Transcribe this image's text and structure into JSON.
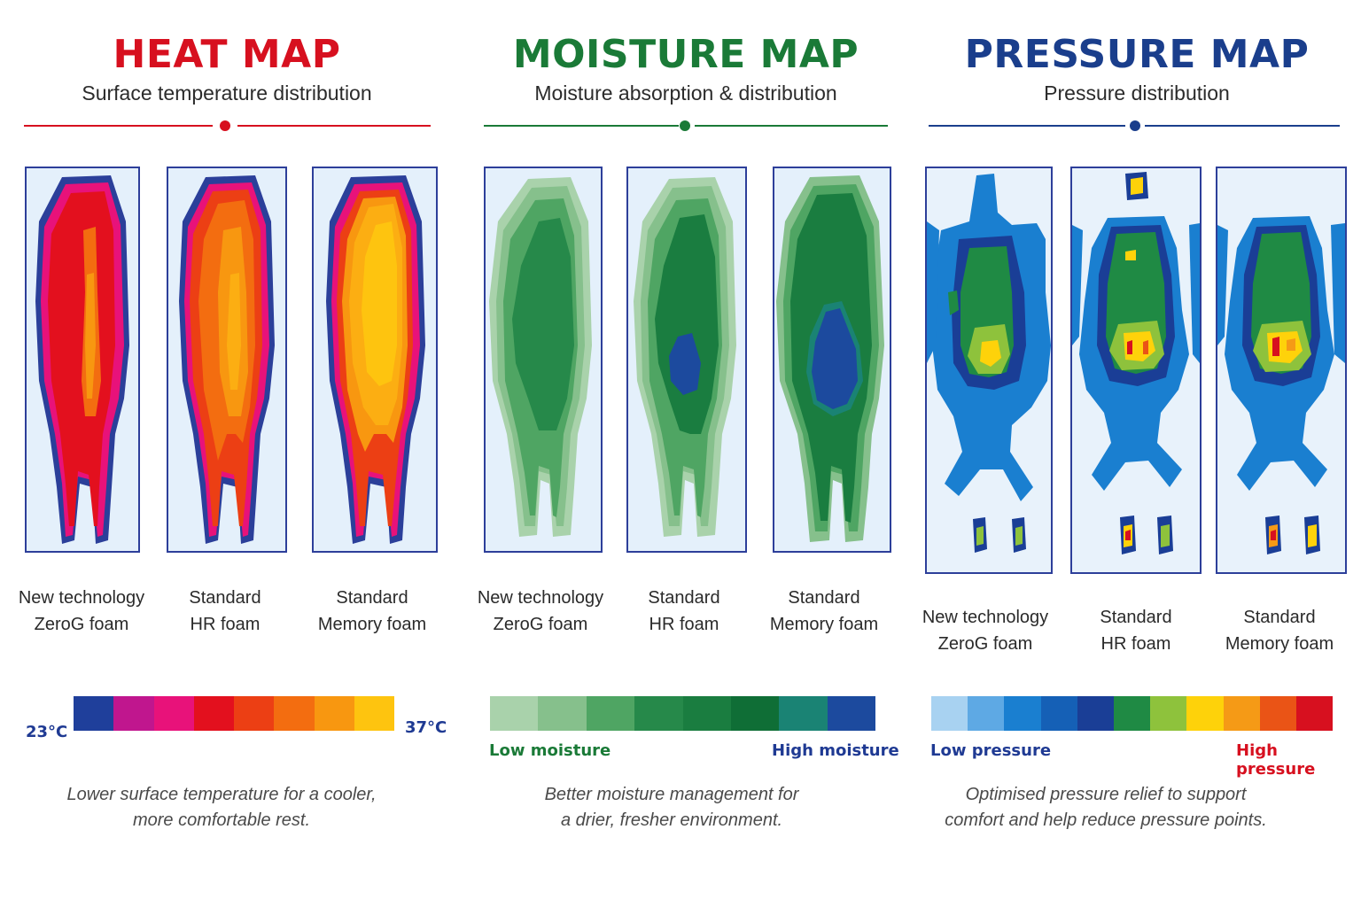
{
  "heat": {
    "title": "HEAT MAP",
    "subtitle": "Surface temperature distribution",
    "accent": "#d7101f",
    "maps": [
      {
        "line1": "New technology",
        "line2": "ZeroG foam"
      },
      {
        "line1": "Standard",
        "line2": "HR foam"
      },
      {
        "line1": "Standard",
        "line2": "Memory foam"
      }
    ],
    "scale_colors": [
      "#1f3f9b",
      "#c0168e",
      "#e8127a",
      "#e3101e",
      "#ec3f14",
      "#f36d10",
      "#f89710",
      "#fec40f"
    ],
    "min_label": "23°C",
    "max_label": "37°C",
    "label_color": "#1f3a93",
    "note": [
      "Lower surface temperature for a cooler,",
      "more comfortable rest."
    ]
  },
  "moisture": {
    "title": "MOISTURE MAP",
    "subtitle": "Moisture absorption & distribution",
    "accent": "#1a7a37",
    "maps": [
      {
        "line1": "New technology",
        "line2": "ZeroG foam"
      },
      {
        "line1": "Standard",
        "line2": "HR foam"
      },
      {
        "line1": "Standard",
        "line2": "Memory foam"
      }
    ],
    "scale_colors": [
      "#a9d2ab",
      "#86c08c",
      "#4fa563",
      "#26894a",
      "#1a7d40",
      "#0f6e36",
      "#1a8374",
      "#1c4a9e"
    ],
    "low_label": "Low moisture",
    "high_label": "High moisture",
    "low_color": "#1a7a37",
    "high_color": "#1f3a93",
    "note": [
      "Better moisture management for",
      "a drier, fresher environment."
    ]
  },
  "pressure": {
    "title": "PRESSURE MAP",
    "subtitle": "Pressure distribution",
    "accent": "#1a3e8c",
    "maps": [
      {
        "line1": "New technology",
        "line2": "ZeroG foam"
      },
      {
        "line1": "Standard",
        "line2": "HR foam"
      },
      {
        "line1": "Standard",
        "line2": "Memory foam"
      }
    ],
    "scale_colors": [
      "#a8d2f1",
      "#5ea9e4",
      "#1a7fd0",
      "#1560b6",
      "#1a3e96",
      "#1f8a44",
      "#8ec23c",
      "#fed20a",
      "#f59a16",
      "#ea5416",
      "#d7101f"
    ],
    "low_label": "Low pressure",
    "high_label": "High pressure",
    "low_color": "#1f3a93",
    "high_color": "#d7101f",
    "note": [
      "Optimised pressure relief to support",
      "comfort and help reduce pressure points."
    ]
  }
}
